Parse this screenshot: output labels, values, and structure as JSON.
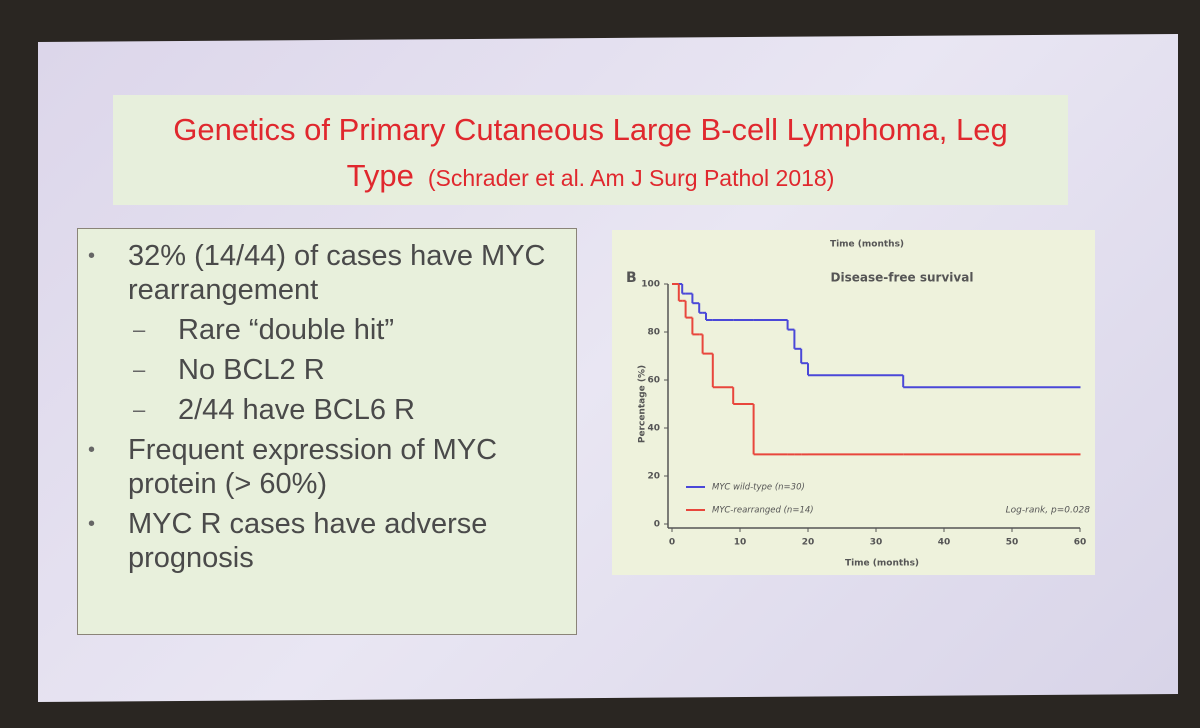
{
  "slide": {
    "title": "Genetics of Primary Cutaneous Large B-cell Lymphoma, Leg Type",
    "citation": "(Schrader et al. Am J Surg Pathol 2018)",
    "bullets": [
      {
        "level": 0,
        "text": "32% (14/44) of cases have MYC rearrangement"
      },
      {
        "level": 1,
        "text": "Rare “double hit”"
      },
      {
        "level": 1,
        "text": "No BCL2 R"
      },
      {
        "level": 1,
        "text": "2/44 have BCL6 R"
      },
      {
        "level": 0,
        "text": "Frequent expression of MYC protein (> 60%)"
      },
      {
        "level": 0,
        "text": "MYC R cases have adverse prognosis"
      }
    ]
  },
  "chart_data": {
    "type": "step",
    "panel": "B",
    "title": "Disease-free survival",
    "top_label": "Time (months)",
    "x_label": "Time (months)",
    "y_label": "Percentage (%)",
    "annotation": "Log-rank, p=0.028",
    "x": [
      0,
      1,
      1.5,
      2,
      3,
      4,
      4.5,
      5,
      6,
      9,
      12,
      17,
      18,
      19,
      20,
      34,
      60
    ],
    "series": [
      {
        "name": "MYC wild-type (n=30)",
        "color": "#4a48d8",
        "values": [
          100,
          100,
          96,
          96,
          92,
          88,
          88,
          85,
          85,
          85,
          85,
          81,
          73,
          67,
          62,
          57,
          57
        ]
      },
      {
        "name": "MYC-rearranged (n=14)",
        "color": "#e8463c",
        "values": [
          100,
          93,
          93,
          86,
          79,
          79,
          71,
          71,
          57,
          50,
          29,
          29,
          29,
          29,
          29,
          29,
          29
        ]
      }
    ],
    "xlim": [
      0,
      60
    ],
    "xticks": [
      0,
      10,
      20,
      30,
      40,
      50,
      60
    ],
    "ylim": [
      0,
      100
    ],
    "yticks": [
      0,
      20,
      40,
      60,
      80,
      100
    ]
  }
}
